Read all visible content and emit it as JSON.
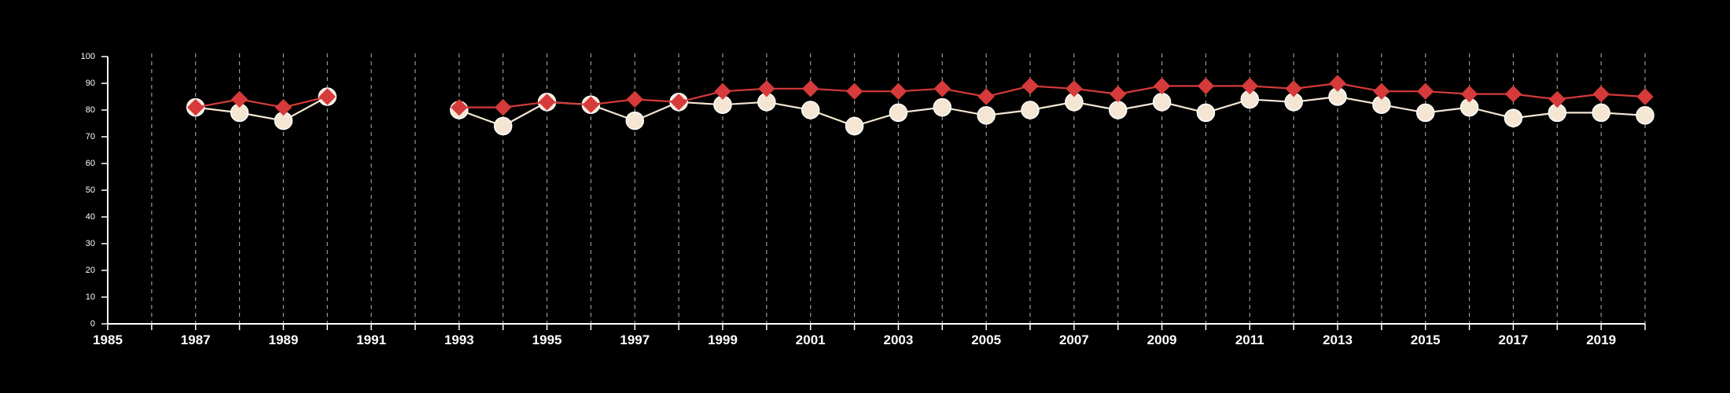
{
  "chart_data": {
    "type": "line",
    "title": "",
    "xlabel": "",
    "ylabel": "",
    "xlim": [
      1985,
      2020
    ],
    "ylim": [
      0,
      100
    ],
    "x_ticks": [
      1985,
      1987,
      1989,
      1991,
      1993,
      1995,
      1997,
      1999,
      2001,
      2003,
      2005,
      2007,
      2009,
      2011,
      2013,
      2015,
      2017,
      2019
    ],
    "y_ticks": [
      0,
      10,
      20,
      30,
      40,
      50,
      60,
      70,
      80,
      90,
      100
    ],
    "vertical_grid": true,
    "legend": "none",
    "series": [
      {
        "color": "#f5e6d3",
        "marker": "circle",
        "points": [
          [
            1987,
            81
          ],
          [
            1988,
            79
          ],
          [
            1989,
            76
          ],
          [
            1990,
            85
          ],
          [
            1993,
            80
          ],
          [
            1994,
            74
          ],
          [
            1995,
            83
          ],
          [
            1996,
            82
          ],
          [
            1997,
            76
          ],
          [
            1998,
            83
          ],
          [
            1999,
            82
          ],
          [
            2000,
            83
          ],
          [
            2001,
            80
          ],
          [
            2002,
            74
          ],
          [
            2003,
            79
          ],
          [
            2004,
            81
          ],
          [
            2005,
            78
          ],
          [
            2006,
            80
          ],
          [
            2007,
            83
          ],
          [
            2008,
            80
          ],
          [
            2009,
            83
          ],
          [
            2010,
            79
          ],
          [
            2011,
            84
          ],
          [
            2012,
            83
          ],
          [
            2013,
            85
          ],
          [
            2014,
            82
          ],
          [
            2015,
            79
          ],
          [
            2016,
            81
          ],
          [
            2017,
            77
          ],
          [
            2018,
            79
          ],
          [
            2019,
            79
          ],
          [
            2020,
            78
          ]
        ]
      },
      {
        "color": "#d63a3a",
        "marker": "diamond",
        "points": [
          [
            1987,
            81
          ],
          [
            1988,
            84
          ],
          [
            1989,
            81
          ],
          [
            1990,
            85
          ],
          [
            1993,
            81
          ],
          [
            1994,
            81
          ],
          [
            1995,
            83
          ],
          [
            1996,
            82
          ],
          [
            1997,
            84
          ],
          [
            1998,
            83
          ],
          [
            1999,
            87
          ],
          [
            2000,
            88
          ],
          [
            2001,
            88
          ],
          [
            2002,
            87
          ],
          [
            2003,
            87
          ],
          [
            2004,
            88
          ],
          [
            2005,
            85
          ],
          [
            2006,
            89
          ],
          [
            2007,
            88
          ],
          [
            2008,
            86
          ],
          [
            2009,
            89
          ],
          [
            2010,
            89
          ],
          [
            2011,
            89
          ],
          [
            2012,
            88
          ],
          [
            2013,
            90
          ],
          [
            2014,
            87
          ],
          [
            2015,
            87
          ],
          [
            2016,
            86
          ],
          [
            2017,
            86
          ],
          [
            2018,
            84
          ],
          [
            2019,
            86
          ],
          [
            2020,
            85
          ]
        ]
      }
    ]
  }
}
